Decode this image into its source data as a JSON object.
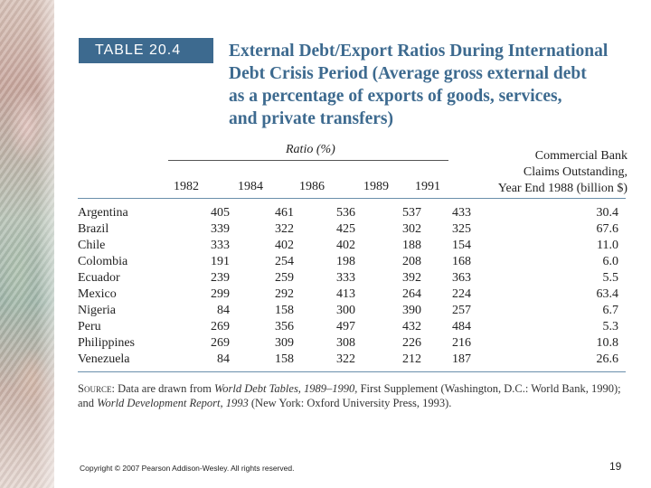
{
  "table": {
    "tag": "TABLE 20.4",
    "title_lines": [
      "External Debt/Export Ratios During International",
      "Debt Crisis Period (Average gross external debt",
      "as a percentage of exports of goods, services,",
      "and private transfers)"
    ],
    "ratio_group_label": "Ratio (%)",
    "claims_header_lines": [
      "Commercial Bank",
      "Claims Outstanding,",
      "Year End 1988 (billion $)"
    ],
    "year_headers": [
      "1982",
      "1984",
      "1986",
      "1989",
      "1991"
    ],
    "rows": [
      {
        "country": "Argentina",
        "values": [
          "405",
          "461",
          "536",
          "537",
          "433"
        ],
        "claims": "30.4"
      },
      {
        "country": "Brazil",
        "values": [
          "339",
          "322",
          "425",
          "302",
          "325"
        ],
        "claims": "67.6"
      },
      {
        "country": "Chile",
        "values": [
          "333",
          "402",
          "402",
          "188",
          "154"
        ],
        "claims": "11.0"
      },
      {
        "country": "Colombia",
        "values": [
          "191",
          "254",
          "198",
          "208",
          "168"
        ],
        "claims": "6.0"
      },
      {
        "country": "Ecuador",
        "values": [
          "239",
          "259",
          "333",
          "392",
          "363"
        ],
        "claims": "5.5"
      },
      {
        "country": "Mexico",
        "values": [
          "299",
          "292",
          "413",
          "264",
          "224"
        ],
        "claims": "63.4"
      },
      {
        "country": "Nigeria",
        "values": [
          "84",
          "158",
          "300",
          "390",
          "257"
        ],
        "claims": "6.7"
      },
      {
        "country": "Peru",
        "values": [
          "269",
          "356",
          "497",
          "432",
          "484"
        ],
        "claims": "5.3"
      },
      {
        "country": "Philippines",
        "values": [
          "269",
          "309",
          "308",
          "226",
          "216"
        ],
        "claims": "10.8"
      },
      {
        "country": "Venezuela",
        "values": [
          "84",
          "158",
          "322",
          "212",
          "187"
        ],
        "claims": "26.6"
      }
    ]
  },
  "source": {
    "label": "Source:",
    "text_a": " Data are drawn from ",
    "title_a": "World Debt Tables, 1989–1990,",
    "text_b": " First Supplement (Washington, D.C.: World Bank, 1990); and ",
    "title_b": "World Development Report, 1993",
    "text_c": " (New York: Oxford University Press, 1993)."
  },
  "footer": {
    "copyright": "Copyright © 2007 Pearson Addison-Wesley. All rights reserved.",
    "page_number": "19"
  }
}
